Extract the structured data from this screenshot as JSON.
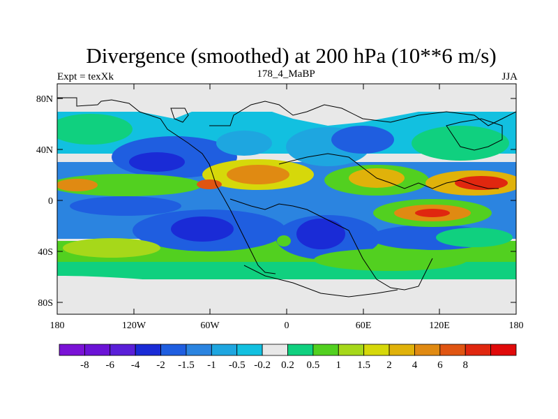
{
  "title": "Divergence (smoothed) at 200 hPa (10**6 m/s)",
  "left_label": "Expt = texXk",
  "center_label": "178_4_MaBP",
  "right_label": "JJA",
  "lat_ticks": [
    "80N",
    "40N",
    "0",
    "40S",
    "80S"
  ],
  "lon_ticks": [
    "180",
    "120W",
    "60W",
    "0",
    "60E",
    "120E",
    "180"
  ],
  "colorbar": {
    "colors": [
      "#7a12d6",
      "#6b13d6",
      "#5a1fd8",
      "#1a2bd6",
      "#1f5ee0",
      "#2b84e0",
      "#1ea6e0",
      "#12c0e0",
      "#e8e8e8",
      "#10d07f",
      "#52d020",
      "#a6d81a",
      "#d6d80a",
      "#e0b20a",
      "#e08a12",
      "#e05512",
      "#e0270f",
      "#e00a0a"
    ],
    "labels": [
      "-8",
      "-6",
      "-4",
      "-2",
      "-1.5",
      "-1",
      "-0.5",
      "-0.2",
      "0.2",
      "0.5",
      "1",
      "1.5",
      "2",
      "4",
      "6",
      "8"
    ]
  },
  "field_colors": {
    "land_neutral": "#e8e8e8",
    "strong_neg": "#1a2bd6",
    "neg": "#1f5ee0",
    "weak_neg": "#1ea6e0",
    "weak_pos": "#10d07f",
    "pos": "#52d020",
    "mid_pos": "#d6d80a",
    "orange": "#e08a12",
    "red": "#e0270f"
  }
}
